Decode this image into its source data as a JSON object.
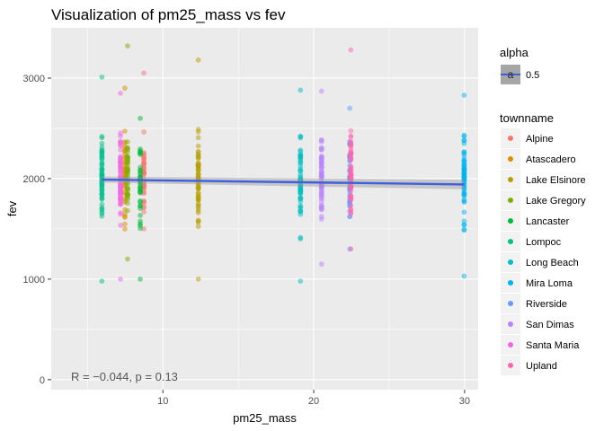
{
  "chart_data": {
    "type": "scatter",
    "title": "Visualization of pm25_mass vs fev",
    "xlabel": "pm25_mass",
    "ylabel": "fev",
    "xlim": [
      2.6,
      30.9
    ],
    "ylim": [
      -100,
      3500
    ],
    "x_ticks": [
      10,
      20,
      30
    ],
    "y_ticks": [
      0,
      1000,
      2000,
      3000
    ],
    "grid": true,
    "legend_position": "right",
    "point_alpha": 0.5,
    "alpha_legend": {
      "title": "alpha",
      "label": "0.5",
      "key_glyph": "a"
    },
    "color_legend_title": "townname",
    "annotation": "R = −0.044, p = 0.13",
    "regression": {
      "x": [
        5.96,
        29.97
      ],
      "y": [
        1990,
        1942
      ],
      "ci_band": 30,
      "color": "#3f5fe0"
    },
    "series": [
      {
        "name": "Alpine",
        "color": "#F8766D",
        "pm25_mass": 8.74,
        "fev_range": [
          1500,
          3050
        ],
        "n": 40
      },
      {
        "name": "Atascadero",
        "color": "#DE8C00",
        "pm25_mass": 7.48,
        "fev_range": [
          1500,
          2900
        ],
        "n": 40
      },
      {
        "name": "Lake Elsinore",
        "color": "#B79F00",
        "pm25_mass": 12.35,
        "fev_range": [
          1000,
          3180
        ],
        "n": 60
      },
      {
        "name": "Lake Gregory",
        "color": "#7CAE00",
        "pm25_mass": 7.66,
        "fev_range": [
          1200,
          3320
        ],
        "n": 40
      },
      {
        "name": "Lancaster",
        "color": "#00BA38",
        "pm25_mass": 8.5,
        "fev_range": [
          1000,
          2600
        ],
        "n": 40
      },
      {
        "name": "Lompoc",
        "color": "#00C08B",
        "pm25_mass": 5.96,
        "fev_range": [
          980,
          3010
        ],
        "n": 60
      },
      {
        "name": "Long Beach",
        "color": "#00BFC4",
        "pm25_mass": 19.12,
        "fev_range": [
          980,
          2880
        ],
        "n": 60
      },
      {
        "name": "Mira Loma",
        "color": "#00B4F0",
        "pm25_mass": 29.97,
        "fev_range": [
          1030,
          2830
        ],
        "n": 60
      },
      {
        "name": "Riverside",
        "color": "#619CFF",
        "pm25_mass": 22.39,
        "fev_range": [
          1300,
          2700
        ],
        "n": 40
      },
      {
        "name": "San Dimas",
        "color": "#B983FF",
        "pm25_mass": 20.52,
        "fev_range": [
          1150,
          2870
        ],
        "n": 60
      },
      {
        "name": "Santa Maria",
        "color": "#F564E3",
        "pm25_mass": 7.19,
        "fev_range": [
          1000,
          2850
        ],
        "n": 60
      },
      {
        "name": "Upland",
        "color": "#FF64B0",
        "pm25_mass": 22.46,
        "fev_range": [
          1300,
          3280
        ],
        "n": 60
      }
    ]
  }
}
